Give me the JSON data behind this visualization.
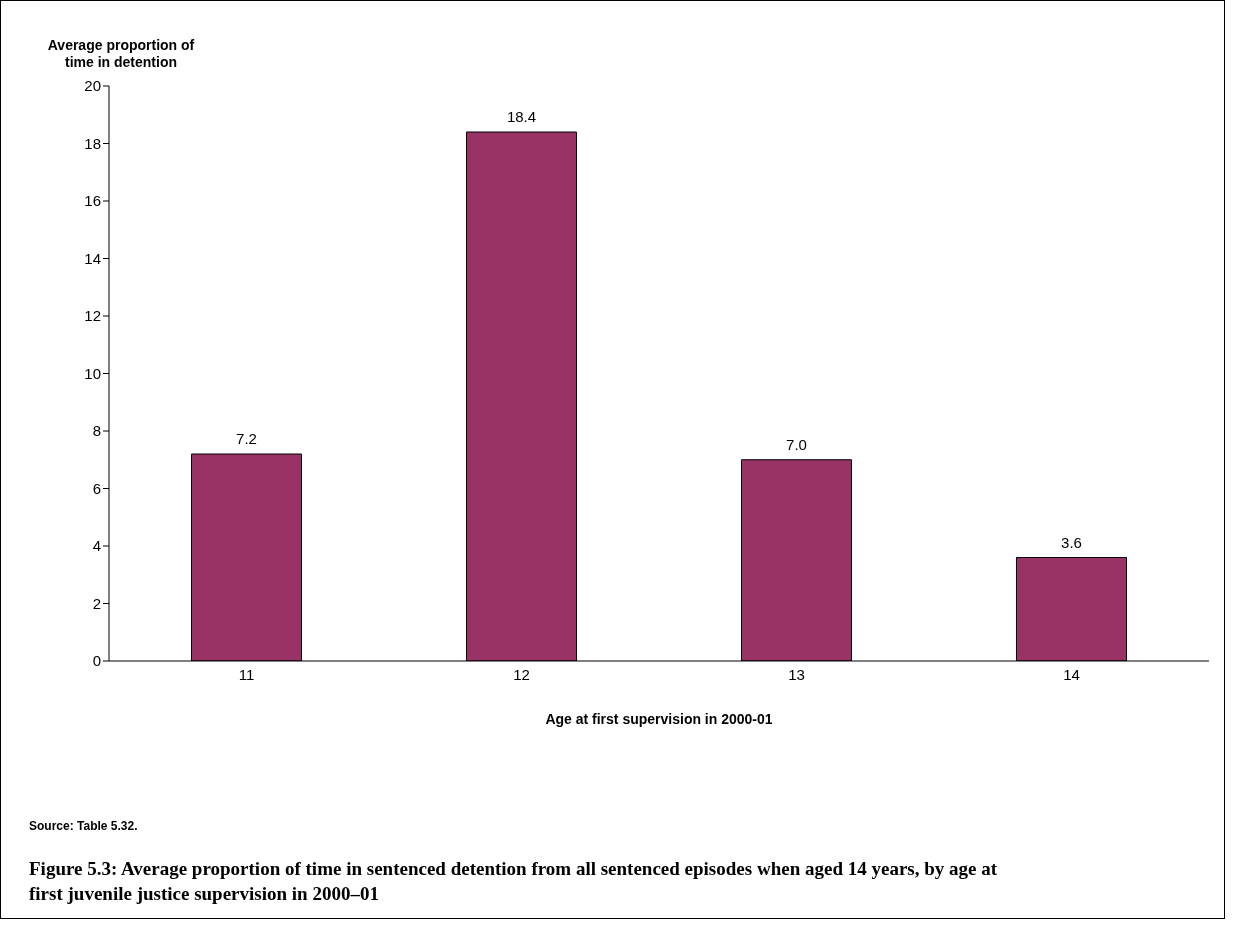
{
  "chart_data": {
    "type": "bar",
    "title": "Figure 5.3: Average proportion of time in sentenced detention from all sentenced episodes when aged 14 years, by age at first juvenile justice supervision in 2000–01",
    "ylabel": "Average proportion of time in detention",
    "xlabel": "Age at first supervision in 2000-01",
    "categories": [
      "11",
      "12",
      "13",
      "14"
    ],
    "values": [
      7.2,
      18.4,
      7.0,
      3.6
    ],
    "value_labels": [
      "7.2",
      "18.4",
      "7.0",
      "3.6"
    ],
    "color": "#993366",
    "ylim": [
      0,
      20
    ],
    "yticks": [
      0,
      2,
      4,
      6,
      8,
      10,
      12,
      14,
      16,
      18,
      20
    ],
    "grid": false,
    "annotations": [
      "Source: Table 5.32."
    ]
  }
}
